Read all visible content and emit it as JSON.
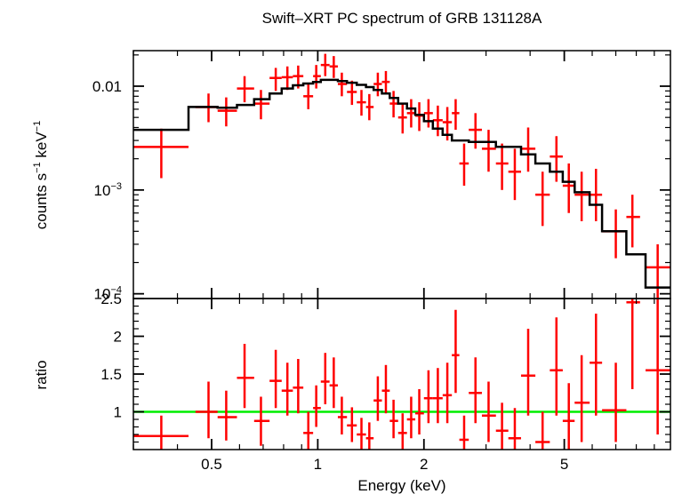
{
  "chart_data": {
    "type": "scatter",
    "title": "Swift–XRT PC spectrum of GRB 131128A",
    "xlabel": "Energy (keV)",
    "x_scale": "log",
    "xlim": [
      0.3,
      10
    ],
    "x_ticks": [
      {
        "value": 0.5,
        "label": "0.5"
      },
      {
        "value": 1,
        "label": "1"
      },
      {
        "value": 2,
        "label": "2"
      },
      {
        "value": 5,
        "label": "5"
      }
    ],
    "colors": {
      "data": "#ff0000",
      "model": "#000000",
      "unity": "#00ee00"
    },
    "panels": [
      {
        "name": "spectrum",
        "ylabel_main": "counts s",
        "ylabel_sup1": "−1",
        "ylabel_mid": " keV",
        "ylabel_sup2": "−1",
        "y_scale": "log",
        "ylim": [
          9e-05,
          0.022
        ],
        "y_ticks": [
          {
            "value": 0.01,
            "label": "0.01",
            "base": "",
            "exp": ""
          },
          {
            "value": 0.001,
            "label": "",
            "base": "10",
            "exp": "−3"
          },
          {
            "value": 0.0001,
            "label": "",
            "base": "10",
            "exp": "−4"
          }
        ],
        "data": [
          {
            "x": 0.36,
            "xlo": 0.3,
            "xhi": 0.43,
            "y": 0.0026,
            "ylo": 0.0013,
            "yhi": 0.0039
          },
          {
            "x": 0.49,
            "xlo": 0.45,
            "xhi": 0.52,
            "y": 0.0063,
            "ylo": 0.0045,
            "yhi": 0.0085
          },
          {
            "x": 0.55,
            "xlo": 0.52,
            "xhi": 0.59,
            "y": 0.0058,
            "ylo": 0.0041,
            "yhi": 0.0078
          },
          {
            "x": 0.62,
            "xlo": 0.59,
            "xhi": 0.66,
            "y": 0.0095,
            "ylo": 0.007,
            "yhi": 0.0125
          },
          {
            "x": 0.69,
            "xlo": 0.66,
            "xhi": 0.73,
            "y": 0.0068,
            "ylo": 0.0048,
            "yhi": 0.0092
          },
          {
            "x": 0.76,
            "xlo": 0.73,
            "xhi": 0.79,
            "y": 0.012,
            "ylo": 0.009,
            "yhi": 0.015
          },
          {
            "x": 0.82,
            "xlo": 0.79,
            "xhi": 0.85,
            "y": 0.0122,
            "ylo": 0.0092,
            "yhi": 0.0155
          },
          {
            "x": 0.88,
            "xlo": 0.85,
            "xhi": 0.91,
            "y": 0.0125,
            "ylo": 0.0095,
            "yhi": 0.0158
          },
          {
            "x": 0.94,
            "xlo": 0.91,
            "xhi": 0.97,
            "y": 0.008,
            "ylo": 0.006,
            "yhi": 0.0105
          },
          {
            "x": 0.99,
            "xlo": 0.97,
            "xhi": 1.02,
            "y": 0.0125,
            "ylo": 0.0095,
            "yhi": 0.016
          },
          {
            "x": 1.05,
            "xlo": 1.02,
            "xhi": 1.08,
            "y": 0.016,
            "ylo": 0.0125,
            "yhi": 0.0205
          },
          {
            "x": 1.11,
            "xlo": 1.08,
            "xhi": 1.14,
            "y": 0.0155,
            "ylo": 0.012,
            "yhi": 0.0195
          },
          {
            "x": 1.17,
            "xlo": 1.14,
            "xhi": 1.21,
            "y": 0.0105,
            "ylo": 0.008,
            "yhi": 0.0135
          },
          {
            "x": 1.25,
            "xlo": 1.21,
            "xhi": 1.29,
            "y": 0.0088,
            "ylo": 0.0066,
            "yhi": 0.0113
          },
          {
            "x": 1.33,
            "xlo": 1.29,
            "xhi": 1.37,
            "y": 0.007,
            "ylo": 0.0052,
            "yhi": 0.0092
          },
          {
            "x": 1.4,
            "xlo": 1.37,
            "xhi": 1.44,
            "y": 0.0063,
            "ylo": 0.0047,
            "yhi": 0.0084
          },
          {
            "x": 1.48,
            "xlo": 1.44,
            "xhi": 1.52,
            "y": 0.0105,
            "ylo": 0.008,
            "yhi": 0.0135
          },
          {
            "x": 1.56,
            "xlo": 1.52,
            "xhi": 1.6,
            "y": 0.011,
            "ylo": 0.0085,
            "yhi": 0.014
          },
          {
            "x": 1.64,
            "xlo": 1.6,
            "xhi": 1.69,
            "y": 0.0068,
            "ylo": 0.005,
            "yhi": 0.009
          },
          {
            "x": 1.74,
            "xlo": 1.69,
            "xhi": 1.79,
            "y": 0.005,
            "ylo": 0.0035,
            "yhi": 0.0068
          },
          {
            "x": 1.84,
            "xlo": 1.79,
            "xhi": 1.89,
            "y": 0.0055,
            "ylo": 0.004,
            "yhi": 0.0075
          },
          {
            "x": 1.94,
            "xlo": 1.89,
            "xhi": 2.0,
            "y": 0.0052,
            "ylo": 0.0037,
            "yhi": 0.007
          },
          {
            "x": 2.06,
            "xlo": 2.0,
            "xhi": 2.12,
            "y": 0.0055,
            "ylo": 0.004,
            "yhi": 0.0075
          },
          {
            "x": 2.19,
            "xlo": 2.12,
            "xhi": 2.26,
            "y": 0.0047,
            "ylo": 0.0033,
            "yhi": 0.0065
          },
          {
            "x": 2.33,
            "xlo": 2.26,
            "xhi": 2.4,
            "y": 0.0045,
            "ylo": 0.003,
            "yhi": 0.0063
          },
          {
            "x": 2.46,
            "xlo": 2.4,
            "xhi": 2.52,
            "y": 0.0055,
            "ylo": 0.0038,
            "yhi": 0.0075
          },
          {
            "x": 2.6,
            "xlo": 2.52,
            "xhi": 2.68,
            "y": 0.0018,
            "ylo": 0.0011,
            "yhi": 0.0028
          },
          {
            "x": 2.8,
            "xlo": 2.68,
            "xhi": 2.92,
            "y": 0.0038,
            "ylo": 0.0025,
            "yhi": 0.0055
          },
          {
            "x": 3.05,
            "xlo": 2.92,
            "xhi": 3.2,
            "y": 0.0025,
            "ylo": 0.0015,
            "yhi": 0.0038
          },
          {
            "x": 3.33,
            "xlo": 3.2,
            "xhi": 3.47,
            "y": 0.0018,
            "ylo": 0.001,
            "yhi": 0.0028
          },
          {
            "x": 3.62,
            "xlo": 3.47,
            "xhi": 3.77,
            "y": 0.0015,
            "ylo": 0.0008,
            "yhi": 0.0025
          },
          {
            "x": 3.95,
            "xlo": 3.77,
            "xhi": 4.14,
            "y": 0.0025,
            "ylo": 0.0015,
            "yhi": 0.004
          },
          {
            "x": 4.34,
            "xlo": 4.14,
            "xhi": 4.55,
            "y": 0.0009,
            "ylo": 0.00045,
            "yhi": 0.0015
          },
          {
            "x": 4.75,
            "xlo": 4.55,
            "xhi": 4.95,
            "y": 0.0021,
            "ylo": 0.0012,
            "yhi": 0.0033
          },
          {
            "x": 5.15,
            "xlo": 4.95,
            "xhi": 5.35,
            "y": 0.0011,
            "ylo": 0.0006,
            "yhi": 0.0018
          },
          {
            "x": 5.6,
            "xlo": 5.35,
            "xhi": 5.9,
            "y": 0.0009,
            "ylo": 0.0005,
            "yhi": 0.0015
          },
          {
            "x": 6.15,
            "xlo": 5.9,
            "xhi": 6.4,
            "y": 0.0009,
            "ylo": 0.0005,
            "yhi": 0.0016
          },
          {
            "x": 7.0,
            "xlo": 6.4,
            "xhi": 7.5,
            "y": 0.0004,
            "ylo": 0.00022,
            "yhi": 0.00065
          },
          {
            "x": 7.8,
            "xlo": 7.5,
            "xhi": 8.2,
            "y": 0.00055,
            "ylo": 0.00028,
            "yhi": 0.0009
          },
          {
            "x": 9.2,
            "xlo": 8.5,
            "xhi": 10.0,
            "y": 0.00018,
            "ylo": 9e-05,
            "yhi": 0.0003
          }
        ],
        "model_steps": [
          {
            "x0": 0.3,
            "x1": 0.43,
            "y": 0.0038
          },
          {
            "x0": 0.43,
            "x1": 0.52,
            "y": 0.0063
          },
          {
            "x0": 0.52,
            "x1": 0.59,
            "y": 0.0062
          },
          {
            "x0": 0.59,
            "x1": 0.66,
            "y": 0.0066
          },
          {
            "x0": 0.66,
            "x1": 0.73,
            "y": 0.0075
          },
          {
            "x0": 0.73,
            "x1": 0.79,
            "y": 0.0085
          },
          {
            "x0": 0.79,
            "x1": 0.85,
            "y": 0.0095
          },
          {
            "x0": 0.85,
            "x1": 0.91,
            "y": 0.0102
          },
          {
            "x0": 0.91,
            "x1": 0.97,
            "y": 0.0106
          },
          {
            "x0": 0.97,
            "x1": 1.02,
            "y": 0.011
          },
          {
            "x0": 1.02,
            "x1": 1.14,
            "y": 0.0115
          },
          {
            "x0": 1.14,
            "x1": 1.21,
            "y": 0.0112
          },
          {
            "x0": 1.21,
            "x1": 1.29,
            "y": 0.0108
          },
          {
            "x0": 1.29,
            "x1": 1.37,
            "y": 0.0103
          },
          {
            "x0": 1.37,
            "x1": 1.44,
            "y": 0.0098
          },
          {
            "x0": 1.44,
            "x1": 1.52,
            "y": 0.0092
          },
          {
            "x0": 1.52,
            "x1": 1.6,
            "y": 0.0085
          },
          {
            "x0": 1.6,
            "x1": 1.69,
            "y": 0.0077
          },
          {
            "x0": 1.69,
            "x1": 1.79,
            "y": 0.0068
          },
          {
            "x0": 1.79,
            "x1": 1.89,
            "y": 0.0061
          },
          {
            "x0": 1.89,
            "x1": 2.0,
            "y": 0.0053
          },
          {
            "x0": 2.0,
            "x1": 2.12,
            "y": 0.0046
          },
          {
            "x0": 2.12,
            "x1": 2.26,
            "y": 0.0039
          },
          {
            "x0": 2.26,
            "x1": 2.4,
            "y": 0.0034
          },
          {
            "x0": 2.4,
            "x1": 2.68,
            "y": 0.003
          },
          {
            "x0": 2.68,
            "x1": 3.2,
            "y": 0.0029
          },
          {
            "x0": 3.2,
            "x1": 3.77,
            "y": 0.0026
          },
          {
            "x0": 3.77,
            "x1": 4.14,
            "y": 0.0022
          },
          {
            "x0": 4.14,
            "x1": 4.55,
            "y": 0.0018
          },
          {
            "x0": 4.55,
            "x1": 4.95,
            "y": 0.0015
          },
          {
            "x0": 4.95,
            "x1": 5.35,
            "y": 0.0012
          },
          {
            "x0": 5.35,
            "x1": 5.9,
            "y": 0.00095
          },
          {
            "x0": 5.9,
            "x1": 6.4,
            "y": 0.00072
          },
          {
            "x0": 6.4,
            "x1": 7.5,
            "y": 0.0004
          },
          {
            "x0": 7.5,
            "x1": 8.5,
            "y": 0.00024
          },
          {
            "x0": 8.5,
            "x1": 10.0,
            "y": 0.000115
          }
        ]
      },
      {
        "name": "ratio",
        "ylabel": "ratio",
        "y_scale": "linear",
        "ylim": [
          0.5,
          2.5
        ],
        "y_ticks": [
          {
            "value": 1,
            "label": "1"
          },
          {
            "value": 1.5,
            "label": "1.5"
          },
          {
            "value": 2,
            "label": "2"
          },
          {
            "value": 2.5,
            "label": "2.5"
          }
        ],
        "unity_line": 1,
        "data": [
          {
            "x": 0.36,
            "xlo": 0.3,
            "xhi": 0.43,
            "y": 0.68,
            "ylo": 0.5,
            "yhi": 0.95
          },
          {
            "x": 0.49,
            "xlo": 0.45,
            "xhi": 0.52,
            "y": 1.0,
            "ylo": 0.65,
            "yhi": 1.4
          },
          {
            "x": 0.55,
            "xlo": 0.52,
            "xhi": 0.59,
            "y": 0.93,
            "ylo": 0.62,
            "yhi": 1.28
          },
          {
            "x": 0.62,
            "xlo": 0.59,
            "xhi": 0.66,
            "y": 1.45,
            "ylo": 1.05,
            "yhi": 1.9
          },
          {
            "x": 0.69,
            "xlo": 0.66,
            "xhi": 0.73,
            "y": 0.88,
            "ylo": 0.55,
            "yhi": 1.2
          },
          {
            "x": 0.76,
            "xlo": 0.73,
            "xhi": 0.79,
            "y": 1.41,
            "ylo": 1.05,
            "yhi": 1.82
          },
          {
            "x": 0.82,
            "xlo": 0.79,
            "xhi": 0.85,
            "y": 1.28,
            "ylo": 0.95,
            "yhi": 1.65
          },
          {
            "x": 0.88,
            "xlo": 0.85,
            "xhi": 0.91,
            "y": 1.32,
            "ylo": 0.98,
            "yhi": 1.7
          },
          {
            "x": 0.94,
            "xlo": 0.91,
            "xhi": 0.97,
            "y": 0.72,
            "ylo": 0.5,
            "yhi": 1.0
          },
          {
            "x": 0.99,
            "xlo": 0.97,
            "xhi": 1.02,
            "y": 1.05,
            "ylo": 0.8,
            "yhi": 1.35
          },
          {
            "x": 1.05,
            "xlo": 1.02,
            "xhi": 1.08,
            "y": 1.4,
            "ylo": 1.1,
            "yhi": 1.78
          },
          {
            "x": 1.11,
            "xlo": 1.08,
            "xhi": 1.14,
            "y": 1.35,
            "ylo": 1.05,
            "yhi": 1.72
          },
          {
            "x": 1.17,
            "xlo": 1.14,
            "xhi": 1.21,
            "y": 0.93,
            "ylo": 0.7,
            "yhi": 1.2
          },
          {
            "x": 1.25,
            "xlo": 1.21,
            "xhi": 1.29,
            "y": 0.82,
            "ylo": 0.6,
            "yhi": 1.06
          },
          {
            "x": 1.33,
            "xlo": 1.29,
            "xhi": 1.37,
            "y": 0.7,
            "ylo": 0.5,
            "yhi": 0.92
          },
          {
            "x": 1.4,
            "xlo": 1.37,
            "xhi": 1.44,
            "y": 0.65,
            "ylo": 0.5,
            "yhi": 0.86
          },
          {
            "x": 1.48,
            "xlo": 1.44,
            "xhi": 1.52,
            "y": 1.15,
            "ylo": 0.88,
            "yhi": 1.47
          },
          {
            "x": 1.56,
            "xlo": 1.52,
            "xhi": 1.6,
            "y": 1.28,
            "ylo": 0.98,
            "yhi": 1.62
          },
          {
            "x": 1.64,
            "xlo": 1.6,
            "xhi": 1.69,
            "y": 0.88,
            "ylo": 0.65,
            "yhi": 1.16
          },
          {
            "x": 1.74,
            "xlo": 1.69,
            "xhi": 1.79,
            "y": 0.72,
            "ylo": 0.5,
            "yhi": 0.98
          },
          {
            "x": 1.84,
            "xlo": 1.79,
            "xhi": 1.89,
            "y": 0.9,
            "ylo": 0.65,
            "yhi": 1.2
          },
          {
            "x": 1.94,
            "xlo": 1.89,
            "xhi": 2.0,
            "y": 0.98,
            "ylo": 0.7,
            "yhi": 1.3
          },
          {
            "x": 2.06,
            "xlo": 2.0,
            "xhi": 2.12,
            "y": 1.18,
            "ylo": 0.85,
            "yhi": 1.55
          },
          {
            "x": 2.19,
            "xlo": 2.12,
            "xhi": 2.26,
            "y": 1.18,
            "ylo": 0.85,
            "yhi": 1.58
          },
          {
            "x": 2.33,
            "xlo": 2.26,
            "xhi": 2.4,
            "y": 1.22,
            "ylo": 0.85,
            "yhi": 1.65
          },
          {
            "x": 2.46,
            "xlo": 2.4,
            "xhi": 2.52,
            "y": 1.75,
            "ylo": 1.25,
            "yhi": 2.35
          },
          {
            "x": 2.6,
            "xlo": 2.52,
            "xhi": 2.68,
            "y": 0.63,
            "ylo": 0.5,
            "yhi": 0.95
          },
          {
            "x": 2.8,
            "xlo": 2.68,
            "xhi": 2.92,
            "y": 1.25,
            "ylo": 0.85,
            "yhi": 1.72
          },
          {
            "x": 3.05,
            "xlo": 2.92,
            "xhi": 3.2,
            "y": 0.95,
            "ylo": 0.6,
            "yhi": 1.4
          },
          {
            "x": 3.33,
            "xlo": 3.2,
            "xhi": 3.47,
            "y": 0.75,
            "ylo": 0.5,
            "yhi": 1.12
          },
          {
            "x": 3.62,
            "xlo": 3.47,
            "xhi": 3.77,
            "y": 0.65,
            "ylo": 0.5,
            "yhi": 1.05
          },
          {
            "x": 3.95,
            "xlo": 3.77,
            "xhi": 4.14,
            "y": 1.48,
            "ylo": 0.95,
            "yhi": 2.1
          },
          {
            "x": 4.34,
            "xlo": 4.14,
            "xhi": 4.55,
            "y": 0.6,
            "ylo": 0.5,
            "yhi": 1.0
          },
          {
            "x": 4.75,
            "xlo": 4.55,
            "xhi": 4.95,
            "y": 1.55,
            "ylo": 0.95,
            "yhi": 2.25
          },
          {
            "x": 5.15,
            "xlo": 4.95,
            "xhi": 5.35,
            "y": 0.88,
            "ylo": 0.5,
            "yhi": 1.38
          },
          {
            "x": 5.6,
            "xlo": 5.35,
            "xhi": 5.9,
            "y": 1.12,
            "ylo": 0.6,
            "yhi": 1.75
          },
          {
            "x": 6.15,
            "xlo": 5.9,
            "xhi": 6.4,
            "y": 1.65,
            "ylo": 0.95,
            "yhi": 2.3
          },
          {
            "x": 7.0,
            "xlo": 6.4,
            "xhi": 7.5,
            "y": 1.02,
            "ylo": 0.6,
            "yhi": 1.65
          },
          {
            "x": 7.8,
            "xlo": 7.5,
            "xhi": 8.2,
            "y": 2.45,
            "ylo": 1.3,
            "yhi": 2.5
          },
          {
            "x": 9.2,
            "xlo": 8.5,
            "xhi": 10.0,
            "y": 1.55,
            "ylo": 0.7,
            "yhi": 2.5
          }
        ]
      }
    ]
  }
}
